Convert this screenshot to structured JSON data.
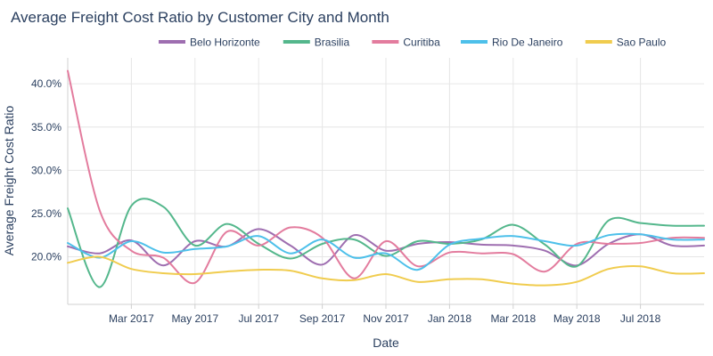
{
  "chart_data": {
    "type": "line",
    "title": "Average Freight Cost Ratio by Customer City and Month",
    "xlabel": "Date",
    "ylabel": "Average Freight Cost Ratio",
    "x_dates": [
      "2017-01",
      "2017-02",
      "2017-03",
      "2017-04",
      "2017-05",
      "2017-06",
      "2017-07",
      "2017-08",
      "2017-09",
      "2017-10",
      "2017-11",
      "2017-12",
      "2018-01",
      "2018-02",
      "2018-03",
      "2018-04",
      "2018-05",
      "2018-06",
      "2018-07",
      "2018-08",
      "2018-09"
    ],
    "x_ticks": [
      {
        "date": "2017-03",
        "label": "Mar 2017"
      },
      {
        "date": "2017-05",
        "label": "May 2017"
      },
      {
        "date": "2017-07",
        "label": "Jul 2017"
      },
      {
        "date": "2017-09",
        "label": "Sep 2017"
      },
      {
        "date": "2017-11",
        "label": "Nov 2017"
      },
      {
        "date": "2018-01",
        "label": "Jan 2018"
      },
      {
        "date": "2018-03",
        "label": "Mar 2018"
      },
      {
        "date": "2018-05",
        "label": "May 2018"
      },
      {
        "date": "2018-07",
        "label": "Jul 2018"
      }
    ],
    "y_ticks": [
      {
        "value": 0.2,
        "label": "20.0%"
      },
      {
        "value": 0.25,
        "label": "25.0%"
      },
      {
        "value": 0.3,
        "label": "30.0%"
      },
      {
        "value": 0.35,
        "label": "35.0%"
      },
      {
        "value": 0.4,
        "label": "40.0%"
      }
    ],
    "ylim": [
      0.145,
      0.43
    ],
    "legend_position": "top-center",
    "grid": true,
    "series": [
      {
        "name": "Belo Horizonte",
        "color": "#9E6EB0",
        "values": [
          0.212,
          0.204,
          0.219,
          0.19,
          0.218,
          0.212,
          0.232,
          0.213,
          0.191,
          0.225,
          0.207,
          0.215,
          0.217,
          0.214,
          0.213,
          0.207,
          0.19,
          0.215,
          0.226,
          0.213,
          0.213
        ]
      },
      {
        "name": "Brasilia",
        "color": "#54B78C",
        "values": [
          0.256,
          0.165,
          0.259,
          0.258,
          0.213,
          0.238,
          0.215,
          0.198,
          0.215,
          0.22,
          0.201,
          0.218,
          0.215,
          0.22,
          0.237,
          0.214,
          0.189,
          0.242,
          0.239,
          0.236,
          0.236
        ]
      },
      {
        "name": "Curitiba",
        "color": "#E37C9E",
        "values": [
          0.415,
          0.254,
          0.207,
          0.199,
          0.17,
          0.229,
          0.213,
          0.234,
          0.222,
          0.175,
          0.218,
          0.189,
          0.205,
          0.204,
          0.203,
          0.183,
          0.215,
          0.215,
          0.216,
          0.222,
          0.222
        ]
      },
      {
        "name": "Rio De Janeiro",
        "color": "#4DC0EA",
        "values": [
          0.216,
          0.199,
          0.218,
          0.205,
          0.209,
          0.212,
          0.224,
          0.204,
          0.22,
          0.199,
          0.204,
          0.185,
          0.214,
          0.221,
          0.224,
          0.218,
          0.213,
          0.225,
          0.226,
          0.22,
          0.22
        ]
      },
      {
        "name": "Sao Paulo",
        "color": "#F0CC4E",
        "values": [
          0.193,
          0.2,
          0.186,
          0.181,
          0.18,
          0.183,
          0.185,
          0.184,
          0.175,
          0.173,
          0.18,
          0.171,
          0.174,
          0.174,
          0.169,
          0.167,
          0.171,
          0.186,
          0.189,
          0.181,
          0.181
        ]
      }
    ]
  }
}
